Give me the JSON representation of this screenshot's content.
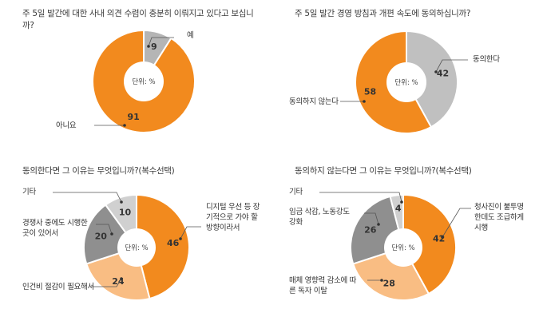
{
  "colors": {
    "orange": "#f28a1e",
    "light_orange": "#f9bd83",
    "gray": "#9a9a9a",
    "light_gray": "#c8c8c8",
    "white": "#ffffff"
  },
  "chart_data": [
    {
      "type": "pie",
      "title": "주 5일 발간에 대한 사내 의견 수렴이 충분히 이뤄지고 있다고 보십니까?",
      "center_label": "단위: %",
      "slices": [
        {
          "label": "예",
          "value": 9,
          "color": "#b5b5b5"
        },
        {
          "label": "아니요",
          "value": 91,
          "color": "#f28a1e"
        }
      ]
    },
    {
      "type": "pie",
      "title": "주 5일 발간 경영 방침과 개편 속도에 동의하십니까?",
      "center_label": "단위: %",
      "slices": [
        {
          "label": "동의한다",
          "value": 42,
          "color": "#c0c0c0"
        },
        {
          "label": "동의하지 않는다",
          "value": 58,
          "color": "#f28a1e"
        }
      ]
    },
    {
      "type": "pie",
      "title": "동의한다면 그 이유는 무엇입니까?(복수선택)",
      "center_label": "단위: %",
      "slices": [
        {
          "label": "디지털 우선 등 장기적으로 가야 할 방향이라서",
          "value": 46,
          "color": "#f28a1e"
        },
        {
          "label": "인건비 절감이 필요해서",
          "value": 24,
          "color": "#f9bd83"
        },
        {
          "label": "경쟁사 중에도 시행한 곳이 있어서",
          "value": 20,
          "color": "#8f8f8f"
        },
        {
          "label": "기타",
          "value": 10,
          "color": "#d0d0d0"
        }
      ]
    },
    {
      "type": "pie",
      "title": "동의하지 않는다면 그 이유는 무엇입니까?(복수선택)",
      "center_label": "단위: %",
      "slices": [
        {
          "label": "청사진이 불투명한데도 조급하게 시행",
          "value": 42,
          "color": "#f28a1e"
        },
        {
          "label": "매체 영향력 감소에 따른 독자 이탈",
          "value": 28,
          "color": "#f9bd83"
        },
        {
          "label": "임금 삭감, 노동강도 강화",
          "value": 26,
          "color": "#8f8f8f"
        },
        {
          "label": "기타",
          "value": 4,
          "color": "#d0d0d0"
        }
      ]
    }
  ]
}
